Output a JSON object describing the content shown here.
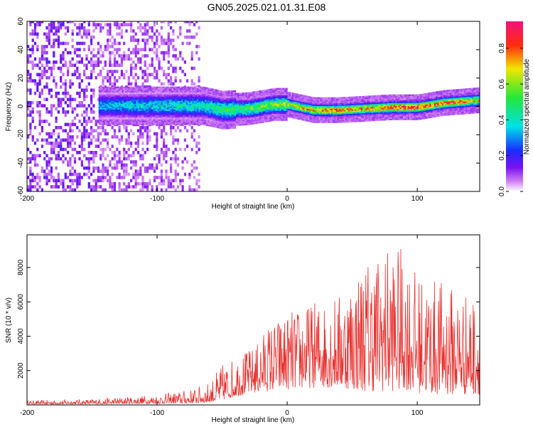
{
  "title": "GN05.2025.021.01.31.E08",
  "colors": {
    "trace": "#e8302e",
    "axis": "#000000"
  },
  "chart_data": [
    {
      "type": "heatmap",
      "title": "",
      "xlabel": "Height of straight line (km)",
      "ylabel": "Frequency (Hz)",
      "xlim": [
        -200,
        148
      ],
      "ylim": [
        -60,
        60
      ],
      "xticks": [
        -200,
        -100,
        0,
        100
      ],
      "xtick_labels": [
        "-200",
        "-100",
        "0",
        "100"
      ],
      "yticks": [
        -60,
        -40,
        -20,
        0,
        20,
        40,
        60
      ],
      "ytick_labels": [
        "-60",
        "-40",
        "-20",
        "0",
        "20",
        "40",
        "60"
      ],
      "colorbar": {
        "label": "Normalized spectral amplitude",
        "range": [
          0,
          0.95
        ],
        "ticks": [
          0,
          0.2,
          0.4,
          0.6,
          0.8
        ],
        "tick_labels": [
          "0.0",
          "0.2",
          "0.4",
          "0.6",
          "0.8"
        ],
        "colormap": "rainbow (violet-blue-cyan-green-yellow-red-magenta)"
      },
      "ridge": {
        "x": [
          -145,
          -120,
          -100,
          -80,
          -65,
          -50,
          -30,
          -10,
          0,
          20,
          40,
          60,
          80,
          100,
          120,
          148
        ],
        "frequency": [
          0,
          0,
          0,
          0,
          0,
          -3,
          -2,
          1,
          1,
          -3,
          -3,
          -2,
          -1,
          -1,
          2,
          4
        ],
        "peak_amplitude": [
          0.35,
          0.38,
          0.4,
          0.42,
          0.45,
          0.5,
          0.55,
          0.6,
          0.65,
          0.78,
          0.82,
          0.8,
          0.85,
          0.9,
          0.88,
          0.7
        ]
      },
      "noise_region_x": [
        -200,
        -68
      ],
      "grid": false
    },
    {
      "type": "line",
      "title": "",
      "xlabel": "Height of straight line (km)",
      "ylabel": "SNR (10 * v/v)",
      "xlim": [
        -200,
        148
      ],
      "ylim": [
        0,
        9900
      ],
      "xticks": [
        -200,
        -100,
        0,
        100
      ],
      "xtick_labels": [
        "-200",
        "-100",
        "0",
        "100"
      ],
      "yticks": [
        2000,
        4000,
        6000,
        8000
      ],
      "ytick_labels": [
        "2000",
        "4000",
        "6000",
        "8000"
      ],
      "envelope": {
        "x": [
          -200,
          -150,
          -100,
          -75,
          -60,
          -50,
          -40,
          -25,
          -15,
          0,
          20,
          40,
          60,
          80,
          90,
          100,
          120,
          148
        ],
        "max": [
          250,
          350,
          600,
          900,
          1300,
          2400,
          2800,
          3400,
          4700,
          5400,
          6000,
          6500,
          8600,
          9300,
          9100,
          7600,
          7200,
          6200
        ],
        "min": [
          50,
          50,
          80,
          100,
          150,
          300,
          500,
          700,
          800,
          900,
          1000,
          1000,
          800,
          800,
          900,
          700,
          600,
          600
        ]
      },
      "grid": false
    }
  ]
}
